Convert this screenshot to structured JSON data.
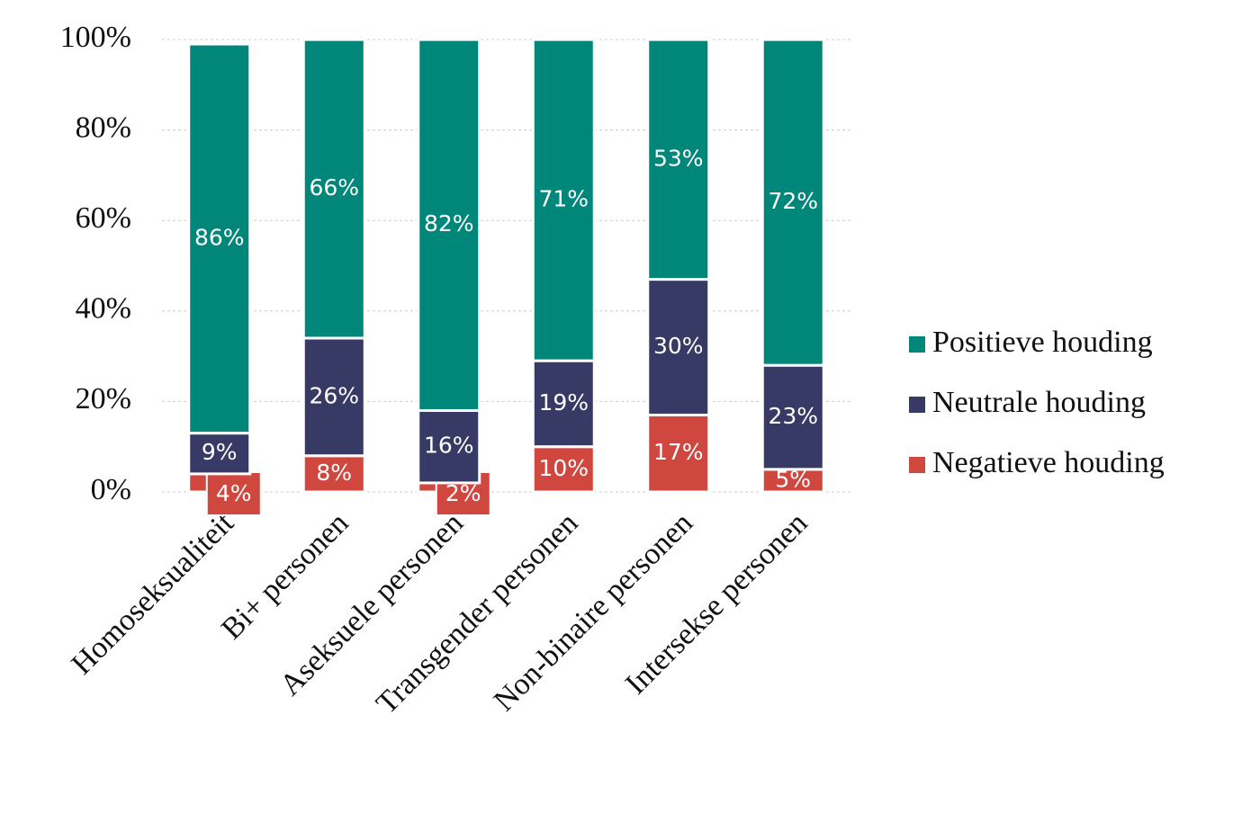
{
  "chart_data": {
    "type": "stacked-bar",
    "categories": [
      "Homoseksualiteit",
      "Bi+ personen",
      "Aseksuele personen",
      "Transgender personen",
      "Non-binaire personen",
      "Intersekse personen"
    ],
    "series": [
      {
        "name": "Positieve houding",
        "color": "#00877a",
        "values": [
          86,
          66,
          82,
          71,
          53,
          72
        ],
        "value_labels": [
          "86%",
          "66%",
          "82%",
          "71%",
          "53%",
          "72%"
        ]
      },
      {
        "name": "Neutrale houding",
        "color": "#363a64",
        "values": [
          9,
          26,
          16,
          19,
          30,
          23
        ],
        "value_labels": [
          "9%",
          "26%",
          "16%",
          "19%",
          "30%",
          "23%"
        ]
      },
      {
        "name": "Negatieve houding",
        "color": "#d0473f",
        "values": [
          4,
          8,
          2,
          10,
          17,
          5
        ],
        "value_labels": [
          "4%",
          "8%",
          "2%",
          "10%",
          "17%",
          "5%"
        ]
      }
    ],
    "ylim": [
      0,
      100
    ],
    "yticks": [
      {
        "value": 0,
        "label": "0%"
      },
      {
        "value": 20,
        "label": "20%"
      },
      {
        "value": 40,
        "label": "40%"
      },
      {
        "value": 60,
        "label": "60%"
      },
      {
        "value": 80,
        "label": "80%"
      },
      {
        "value": 100,
        "label": "100%"
      }
    ],
    "grid": true,
    "legend": "right"
  }
}
